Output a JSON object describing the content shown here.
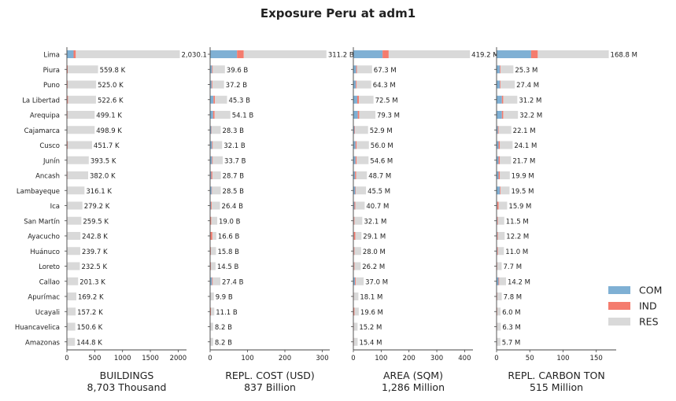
{
  "title": "Exposure Peru at adm1",
  "chart_data": {
    "type": "bar",
    "orientation": "horizontal",
    "stacked": true,
    "categories": [
      "Lima",
      "Piura",
      "Puno",
      "La Libertad",
      "Arequipa",
      "Cajamarca",
      "Cusco",
      "Junín",
      "Ancash",
      "Lambayeque",
      "Ica",
      "San Martín",
      "Ayacucho",
      "Huánuco",
      "Loreto",
      "Callao",
      "Apurímac",
      "Ucayali",
      "Huancavelica",
      "Amazonas"
    ],
    "legend": {
      "position": "bottom-right",
      "entries": [
        "COM",
        "IND",
        "RES"
      ]
    },
    "colors": {
      "COM": "#7fb0d4",
      "IND": "#f47c6e",
      "RES": "#d9d9d9"
    },
    "panels": [
      {
        "xlabel": "BUILDINGS",
        "total": "8,703 Thousand",
        "xlim": [
          0,
          2150
        ],
        "ticks": [
          0,
          500,
          1000,
          1500,
          2000
        ],
        "tick_labels": [
          "0",
          "500",
          "1000",
          "1500",
          "2000"
        ],
        "labels": [
          "2,030.1",
          "559.8 K",
          "525.0 K",
          "522.6 K",
          "499.1 K",
          "498.9 K",
          "451.7 K",
          "393.5 K",
          "382.0 K",
          "316.1 K",
          "279.2 K",
          "259.5 K",
          "242.8 K",
          "239.7 K",
          "232.5 K",
          "201.3 K",
          "169.2 K",
          "157.2 K",
          "150.6 K",
          "144.8 K"
        ],
        "series": [
          {
            "name": "COM",
            "values": [
              120,
              5,
              5,
              8,
              6,
              3,
              8,
              5,
              5,
              4,
              3,
              3,
              2,
              2,
              2,
              5,
              2,
              2,
              1,
              1
            ]
          },
          {
            "name": "IND",
            "values": [
              40,
              10,
              8,
              12,
              6,
              4,
              6,
              4,
              6,
              3,
              4,
              5,
              2,
              2,
              2,
              3,
              2,
              2,
              2,
              2
            ]
          },
          {
            "name": "RES",
            "values": [
              1870.1,
              544.8,
              512.0,
              502.6,
              487.1,
              491.9,
              437.7,
              384.5,
              371.0,
              309.1,
              272.2,
              251.5,
              238.8,
              235.7,
              228.5,
              193.3,
              165.2,
              153.2,
              147.6,
              141.8
            ]
          }
        ]
      },
      {
        "xlabel": "REPL. COST (USD)",
        "total": "837 Billion",
        "xlim": [
          0,
          320
        ],
        "ticks": [
          0,
          100,
          200,
          300
        ],
        "tick_labels": [
          "0",
          "100",
          "200",
          "300"
        ],
        "labels": [
          "311.2 B",
          "39.6 B",
          "37.2 B",
          "45.3 B",
          "54.1 B",
          "28.3 B",
          "32.1 B",
          "33.7 B",
          "28.7 B",
          "28.5 B",
          "26.4 B",
          "19.0 B",
          "16.6 B",
          "15.8 B",
          "14.5 B",
          "27.4 B",
          "9.9 B",
          "11.1 B",
          "8.2 B",
          "8.2 B"
        ],
        "series": [
          {
            "name": "COM",
            "values": [
              72,
              5,
              4,
              9,
              8,
              3,
              5,
              5,
              3,
              4,
              2,
              1,
              1,
              1,
              1,
              5,
              0.5,
              0.6,
              0.4,
              0.4
            ]
          },
          {
            "name": "IND",
            "values": [
              18,
              2,
              2,
              4,
              4,
              1,
              2,
              2,
              3,
              1,
              2,
              2,
              5,
              1,
              1,
              2,
              0.5,
              1.5,
              0.5,
              0.5
            ]
          },
          {
            "name": "RES",
            "values": [
              221.2,
              32.6,
              31.2,
              32.3,
              42.1,
              24.3,
              25.1,
              26.7,
              22.7,
              23.5,
              22.4,
              16.0,
              10.6,
              13.8,
              12.5,
              20.4,
              8.9,
              9.0,
              7.3,
              7.3
            ]
          }
        ]
      },
      {
        "xlabel": "AREA (SQM)",
        "total": "1,286 Million",
        "xlim": [
          0,
          430
        ],
        "ticks": [
          0,
          100,
          200,
          300,
          400
        ],
        "tick_labels": [
          "0",
          "100",
          "200",
          "300",
          "400"
        ],
        "labels": [
          "419.2 M",
          "67.3 M",
          "64.3 M",
          "72.5 M",
          "79.3 M",
          "52.9 M",
          "56.0 M",
          "54.6 M",
          "48.7 M",
          "45.5 M",
          "40.7 M",
          "32.1 M",
          "29.1 M",
          "28.0 M",
          "26.2 M",
          "37.0 M",
          "18.1 M",
          "19.6 M",
          "15.2 M",
          "15.4 M"
        ],
        "series": [
          {
            "name": "COM",
            "values": [
              105,
              10,
              9,
              14,
              16,
              4,
              8,
              8,
              6,
              7,
              4,
              2,
              2,
              2,
              2,
              6,
              1,
              1,
              1,
              1
            ]
          },
          {
            "name": "IND",
            "values": [
              22,
              3,
              3,
              6,
              5,
              2,
              4,
              4,
              4,
              2,
              3,
              2,
              5,
              2,
              2,
              3,
              1,
              3,
              1,
              1
            ]
          },
          {
            "name": "RES",
            "values": [
              292.2,
              54.3,
              52.3,
              52.5,
              58.3,
              46.9,
              44.0,
              42.6,
              38.7,
              36.5,
              33.7,
              28.1,
              22.1,
              24.0,
              22.2,
              28.0,
              16.1,
              15.6,
              13.2,
              13.4
            ]
          }
        ]
      },
      {
        "xlabel": "REPL. CARBON TON",
        "total": "515 Million",
        "xlim": [
          0,
          180
        ],
        "ticks": [
          0,
          50,
          100,
          150
        ],
        "tick_labels": [
          "0",
          "50",
          "100",
          "150"
        ],
        "labels": [
          "168.8 M",
          "25.3 M",
          "27.4 M",
          "31.2 M",
          "32.2 M",
          "22.1 M",
          "24.1 M",
          "21.7 M",
          "19.9 M",
          "19.5 M",
          "15.9 M",
          "11.5 M",
          "12.2 M",
          "11.0 M",
          "7.7 M",
          "14.2 M",
          "7.8 M",
          "6.0 M",
          "6.3 M",
          "5.7 M"
        ],
        "series": [
          {
            "name": "COM",
            "values": [
              52,
              5,
              5,
              8,
              8,
              2,
              3,
              3,
              3,
              5,
              1,
              1,
              1,
              1,
              0.5,
              3,
              0.5,
              0.4,
              0.4,
              0.4
            ]
          },
          {
            "name": "IND",
            "values": [
              10,
              1,
              1,
              2,
              2,
              1,
              2,
              2,
              2,
              1,
              2,
              1,
              1,
              1,
              0.5,
              1,
              0.5,
              0.6,
              0.4,
              0.3
            ]
          },
          {
            "name": "RES",
            "values": [
              106.8,
              19.3,
              21.4,
              21.2,
              22.2,
              19.1,
              19.1,
              16.7,
              14.9,
              13.5,
              12.9,
              9.5,
              10.2,
              9.0,
              6.7,
              10.2,
              6.8,
              5.0,
              5.5,
              5.0
            ]
          }
        ]
      }
    ]
  }
}
